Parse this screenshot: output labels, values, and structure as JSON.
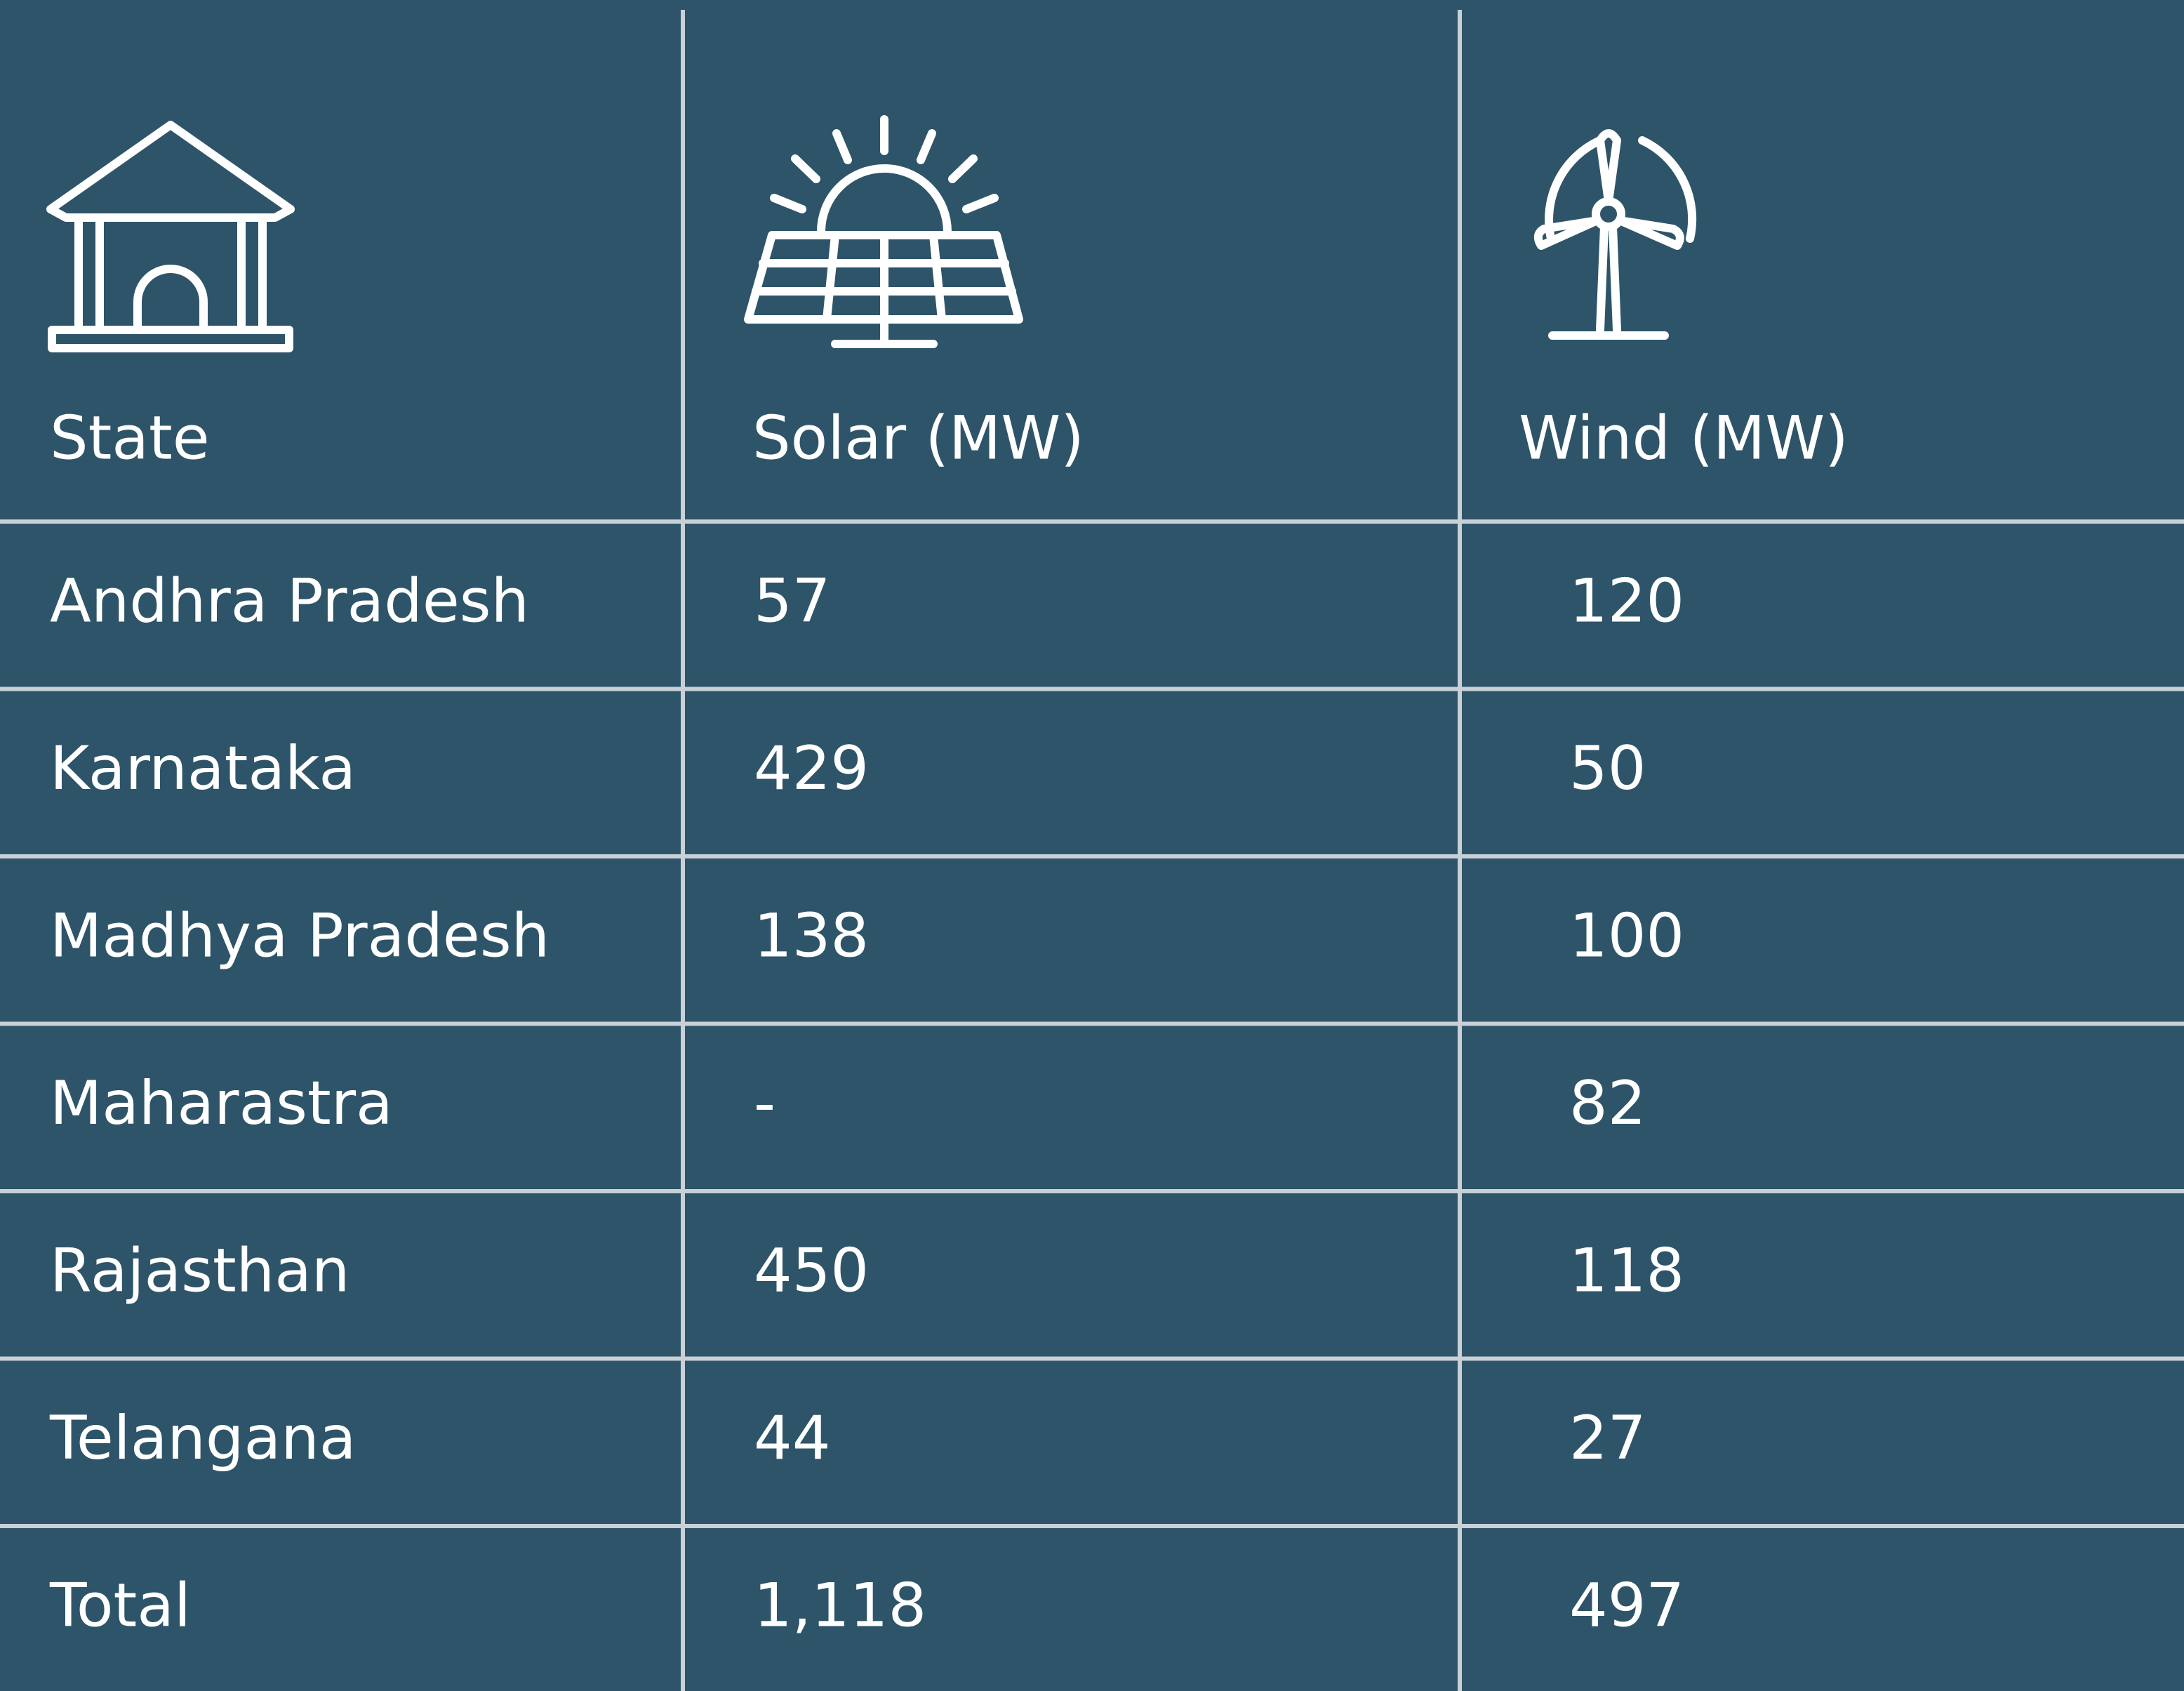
{
  "table": {
    "header": [
      "State",
      "Solar (MW)",
      "Wind (MW)"
    ],
    "rows": [
      [
        "Andhra Pradesh",
        "57",
        "120"
      ],
      [
        "Karnataka",
        "429",
        "50"
      ],
      [
        "Madhya Pradesh",
        "138",
        "100"
      ],
      [
        "Maharastra",
        "-",
        "82"
      ],
      [
        "Rajasthan",
        "450",
        "118"
      ],
      [
        "Telangana",
        "44",
        "27"
      ],
      [
        "Total",
        "1,118",
        "497"
      ]
    ]
  }
}
